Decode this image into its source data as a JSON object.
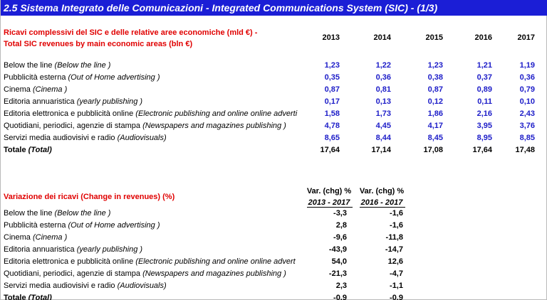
{
  "title": "2.5 Sistema Integrato delle Comunicazioni - Integrated Communications System (SIC) - (1/3)",
  "revenues": {
    "heading_it": "Ricavi complessivi del SIC e delle relative aree economiche (mld €) -",
    "heading_en": "Total SIC revenues by main economic areas (bln €)",
    "years": [
      "2013",
      "2014",
      "2015",
      "2016",
      "2017"
    ],
    "rows": [
      {
        "label_it": "Below the line ",
        "label_en": "(Below the line )",
        "values": [
          "1,23",
          "1,22",
          "1,23",
          "1,21",
          "1,19"
        ]
      },
      {
        "label_it": "Pubblicità esterna  ",
        "label_en": "(Out of Home advertising )",
        "values": [
          "0,35",
          "0,36",
          "0,38",
          "0,37",
          "0,36"
        ]
      },
      {
        "label_it": "Cinema ",
        "label_en": "(Cinema )",
        "values": [
          "0,87",
          "0,81",
          "0,87",
          "0,89",
          "0,79"
        ]
      },
      {
        "label_it": "Editoria annuaristica ",
        "label_en": "(yearly publishing )",
        "values": [
          "0,17",
          "0,13",
          "0,12",
          "0,11",
          "0,10"
        ]
      },
      {
        "label_it": "Editoria elettronica e pubblicità online ",
        "label_en": "(Electronic publishing and online online adverti",
        "values": [
          "1,58",
          "1,73",
          "1,86",
          "2,16",
          "2,43"
        ]
      },
      {
        "label_it": "Quotidiani, periodici, agenzie di stampa ",
        "label_en": "(Newspapers and magazines publishing )",
        "values": [
          "4,78",
          "4,45",
          "4,17",
          "3,95",
          "3,76"
        ]
      },
      {
        "label_it": "Servizi media audiovisivi e radio ",
        "label_en": "(Audiovisuals)",
        "values": [
          "8,65",
          "8,44",
          "8,45",
          "8,95",
          "8,85"
        ]
      }
    ],
    "total": {
      "label_it": "Totale ",
      "label_en": "(Total)",
      "values": [
        "17,64",
        "17,14",
        "17,08",
        "17,64",
        "17,48"
      ]
    }
  },
  "change": {
    "heading": "Variazione dei ricavi (Change in revenues) (%)",
    "col1_head": "Var.  (chg) %",
    "col1_period": "2013 - 2017",
    "col2_head": "Var.  (chg) %",
    "col2_period": "2016 - 2017",
    "rows": [
      {
        "label_it": "Below the line ",
        "label_en": "(Below the line )",
        "values": [
          "-3,3",
          "-1,6"
        ]
      },
      {
        "label_it": "Pubblicità esterna  ",
        "label_en": "(Out of Home advertising )",
        "values": [
          "2,8",
          "-1,6"
        ]
      },
      {
        "label_it": "Cinema ",
        "label_en": "(Cinema )",
        "values": [
          "-9,6",
          "-11,8"
        ]
      },
      {
        "label_it": "Editoria annuaristica ",
        "label_en": "(yearly publishing )",
        "values": [
          "-43,9",
          "-14,7"
        ]
      },
      {
        "label_it": "Editoria elettronica e pubblicità online ",
        "label_en": "(Electronic publishing and online online adverti",
        "values": [
          "54,0",
          "12,6"
        ]
      },
      {
        "label_it": "Quotidiani, periodici, agenzie di stampa ",
        "label_en": "(Newspapers and magazines publishing )",
        "values": [
          "-21,3",
          "-4,7"
        ]
      },
      {
        "label_it": "Servizi media audiovisivi e radio ",
        "label_en": "(Audiovisuals)",
        "values": [
          "2,3",
          "-1,1"
        ]
      }
    ],
    "total": {
      "label_it": "Totale ",
      "label_en": "(Total)",
      "values": [
        "-0,9",
        "-0,9"
      ]
    }
  },
  "colors": {
    "title_bg": "#1b1ed6",
    "heading_red": "#e00000",
    "value_blue": "#1c1cc8"
  }
}
